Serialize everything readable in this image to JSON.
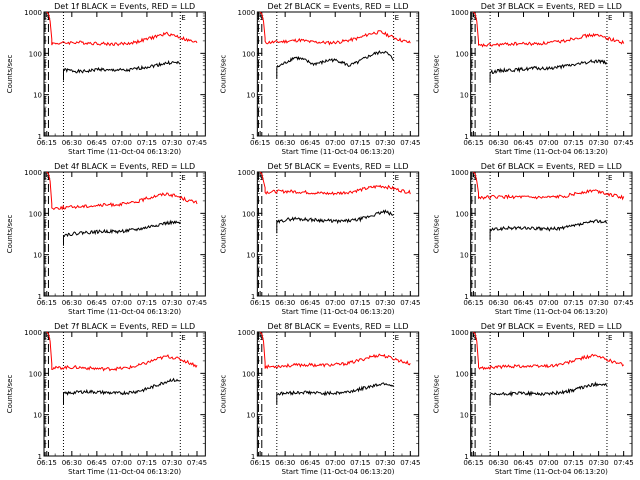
{
  "chart_data": [
    {
      "type": "line",
      "title": "Det 1f BLACK = Events, RED = LLD",
      "xlabel": "Start Time (11-Oct-04 06:13:20)",
      "ylabel": "Counts/sec",
      "series": [
        {
          "name": "Events",
          "color": "#000000",
          "start": "06:25",
          "end": "07:35",
          "level": [
            40,
            38,
            36,
            38,
            42,
            38,
            40,
            38,
            42,
            46,
            50,
            56,
            60,
            58
          ]
        },
        {
          "name": "LLD",
          "color": "#ff0000",
          "start": "06:15",
          "end": "07:45",
          "peak": 1000,
          "level": [
            170,
            175,
            180,
            185,
            180,
            175,
            170,
            168,
            172,
            190,
            220,
            260,
            300,
            260,
            210,
            180
          ]
        }
      ]
    },
    {
      "type": "line",
      "title": "Det 2f BLACK = Events, RED = LLD",
      "xlabel": "Start Time (11-Oct-04 06:13:20)",
      "ylabel": "Counts/sec",
      "series": [
        {
          "name": "Events",
          "color": "#000000",
          "start": "06:25",
          "end": "07:35",
          "level": [
            45,
            60,
            80,
            70,
            55,
            60,
            70,
            65,
            50,
            60,
            80,
            100,
            110,
            70
          ]
        },
        {
          "name": "LLD",
          "color": "#ff0000",
          "start": "06:15",
          "end": "07:45",
          "peak": 1000,
          "level": [
            180,
            185,
            190,
            200,
            210,
            190,
            185,
            180,
            190,
            210,
            240,
            300,
            330,
            260,
            210,
            180
          ]
        }
      ]
    },
    {
      "type": "line",
      "title": "Det 3f BLACK = Events, RED = LLD",
      "xlabel": "Start Time (11-Oct-04 06:13:20)",
      "ylabel": "Counts/sec",
      "series": [
        {
          "name": "Events",
          "color": "#000000",
          "start": "06:25",
          "end": "07:35",
          "level": [
            35,
            38,
            40,
            40,
            42,
            44,
            42,
            45,
            48,
            52,
            56,
            62,
            66,
            60
          ]
        },
        {
          "name": "LLD",
          "color": "#ff0000",
          "start": "06:15",
          "end": "07:45",
          "peak": 1000,
          "level": [
            150,
            155,
            160,
            165,
            170,
            172,
            170,
            175,
            185,
            200,
            230,
            260,
            280,
            250,
            210,
            180
          ]
        }
      ]
    },
    {
      "type": "line",
      "title": "Det 4f BLACK = Events, RED = LLD",
      "xlabel": "Start Time (11-Oct-04 06:13:20)",
      "ylabel": "Counts/sec",
      "series": [
        {
          "name": "Events",
          "color": "#000000",
          "start": "06:25",
          "end": "07:35",
          "level": [
            30,
            32,
            34,
            35,
            36,
            37,
            36,
            38,
            40,
            44,
            50,
            56,
            60,
            58
          ]
        },
        {
          "name": "LLD",
          "color": "#ff0000",
          "start": "06:15",
          "end": "07:45",
          "peak": 1000,
          "level": [
            130,
            135,
            140,
            145,
            150,
            155,
            160,
            165,
            170,
            190,
            230,
            270,
            300,
            260,
            210,
            180
          ]
        }
      ]
    },
    {
      "type": "line",
      "title": "Det 5f BLACK = Events, RED = LLD",
      "xlabel": "Start Time (11-Oct-04 06:13:20)",
      "ylabel": "Counts/sec",
      "series": [
        {
          "name": "Events",
          "color": "#000000",
          "start": "06:25",
          "end": "07:35",
          "level": [
            60,
            70,
            75,
            72,
            70,
            68,
            66,
            64,
            66,
            70,
            80,
            95,
            110,
            90
          ]
        },
        {
          "name": "LLD",
          "color": "#ff0000",
          "start": "06:15",
          "end": "07:45",
          "peak": 1000,
          "level": [
            320,
            330,
            340,
            340,
            330,
            320,
            310,
            300,
            310,
            330,
            370,
            420,
            460,
            420,
            360,
            320
          ]
        }
      ]
    },
    {
      "type": "line",
      "title": "Det 6f BLACK = Events, RED = LLD",
      "xlabel": "Start Time (11-Oct-04 06:13:20)",
      "ylabel": "Counts/sec",
      "series": [
        {
          "name": "Events",
          "color": "#000000",
          "start": "06:25",
          "end": "07:35",
          "level": [
            40,
            42,
            44,
            44,
            44,
            43,
            42,
            42,
            44,
            48,
            54,
            60,
            66,
            60
          ]
        },
        {
          "name": "LLD",
          "color": "#ff0000",
          "start": "06:15",
          "end": "07:45",
          "peak": 1000,
          "level": [
            240,
            245,
            250,
            250,
            250,
            245,
            240,
            240,
            245,
            260,
            290,
            330,
            360,
            320,
            270,
            240
          ]
        }
      ]
    },
    {
      "type": "line",
      "title": "Det 7f BLACK = Events, RED = LLD",
      "xlabel": "Start Time (11-Oct-04 06:13:20)",
      "ylabel": "Counts/sec",
      "series": [
        {
          "name": "Events",
          "color": "#000000",
          "start": "06:25",
          "end": "07:35",
          "level": [
            32,
            34,
            36,
            36,
            35,
            34,
            33,
            34,
            36,
            40,
            48,
            58,
            70,
            65
          ]
        },
        {
          "name": "LLD",
          "color": "#ff0000",
          "start": "06:15",
          "end": "07:45",
          "peak": 1000,
          "level": [
            130,
            135,
            140,
            140,
            135,
            130,
            128,
            130,
            135,
            150,
            180,
            220,
            260,
            230,
            190,
            150
          ]
        }
      ]
    },
    {
      "type": "line",
      "title": "Det 8f BLACK = Events, RED = LLD",
      "xlabel": "Start Time (11-Oct-04 06:13:20)",
      "ylabel": "Counts/sec",
      "series": [
        {
          "name": "Events",
          "color": "#000000",
          "start": "06:25",
          "end": "07:35",
          "level": [
            32,
            33,
            34,
            35,
            34,
            33,
            33,
            34,
            36,
            40,
            46,
            52,
            58,
            50
          ]
        },
        {
          "name": "LLD",
          "color": "#ff0000",
          "start": "06:15",
          "end": "07:45",
          "peak": 1000,
          "level": [
            140,
            145,
            150,
            155,
            160,
            160,
            158,
            160,
            165,
            180,
            210,
            250,
            280,
            240,
            200,
            170
          ]
        }
      ]
    },
    {
      "type": "line",
      "title": "Det 9f BLACK = Events, RED = LLD",
      "xlabel": "Start Time (11-Oct-04 06:13:20)",
      "ylabel": "Counts/sec",
      "series": [
        {
          "name": "Events",
          "color": "#000000",
          "start": "06:25",
          "end": "07:35",
          "level": [
            30,
            31,
            32,
            33,
            33,
            32,
            32,
            33,
            35,
            38,
            44,
            50,
            56,
            52
          ]
        },
        {
          "name": "LLD",
          "color": "#ff0000",
          "start": "06:15",
          "end": "07:45",
          "peak": 1000,
          "level": [
            130,
            135,
            140,
            145,
            150,
            150,
            148,
            150,
            155,
            170,
            200,
            240,
            270,
            230,
            190,
            160
          ]
        }
      ]
    }
  ],
  "axes": {
    "xticks": [
      "06:15",
      "06:30",
      "06:45",
      "07:00",
      "07:15",
      "07:30",
      "07:45"
    ],
    "yticks": [
      "1",
      "10",
      "100",
      "1000"
    ],
    "xlim": [
      "06:13:20",
      "07:50"
    ],
    "ylim": [
      1,
      1000
    ],
    "yscale": "log",
    "marker_labels": [
      "S",
      "E"
    ]
  }
}
